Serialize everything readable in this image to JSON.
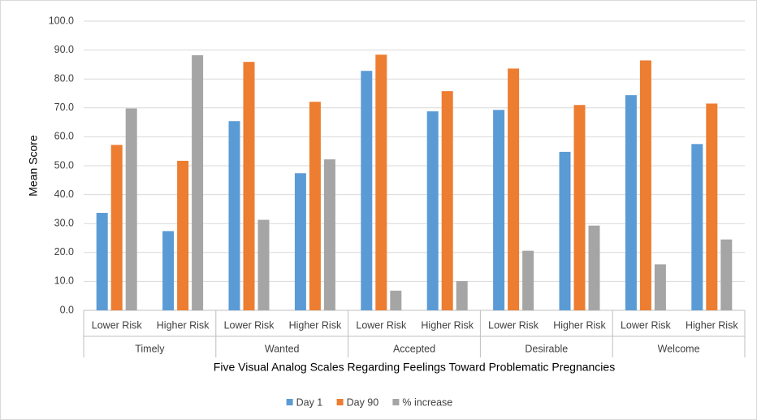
{
  "chart_data": {
    "type": "bar",
    "y_axis_label": "Mean Score",
    "x_axis_label": "Five Visual Analog Scales Regarding Feelings Toward Problematic Pregnancies",
    "categories": [
      "Lower Risk",
      "Higher Risk",
      "Lower Risk",
      "Higher Risk",
      "Lower Risk",
      "Higher Risk",
      "Lower Risk",
      "Higher Risk",
      "Lower Risk",
      "Higher Risk"
    ],
    "category_groups": [
      "Timely",
      "Wanted",
      "Accepted",
      "Desirable",
      "Welcome"
    ],
    "series": [
      {
        "name": "Day 1",
        "color": "#5b9bd5",
        "values": [
          33.7,
          27.4,
          65.4,
          47.4,
          82.8,
          68.8,
          69.3,
          54.8,
          74.4,
          57.5
        ]
      },
      {
        "name": "Day 90",
        "color": "#ed7d31",
        "values": [
          57.2,
          51.7,
          85.9,
          72.1,
          88.4,
          75.8,
          83.6,
          71.0,
          86.4,
          71.5
        ]
      },
      {
        "name": "% increase",
        "color": "#a5a5a5",
        "values": [
          69.8,
          88.2,
          31.3,
          52.2,
          6.8,
          10.1,
          20.6,
          29.3,
          15.9,
          24.5
        ]
      }
    ],
    "ylim": [
      0,
      100
    ],
    "yticks": [
      {
        "value": 0,
        "label": "0.0"
      },
      {
        "value": 10,
        "label": "10.0"
      },
      {
        "value": 20,
        "label": "20.0"
      },
      {
        "value": 30,
        "label": "30.0"
      },
      {
        "value": 40,
        "label": "40.0"
      },
      {
        "value": 50,
        "label": "50.0"
      },
      {
        "value": 60,
        "label": "60.0"
      },
      {
        "value": 70,
        "label": "70.0"
      },
      {
        "value": 80,
        "label": "80.0"
      },
      {
        "value": 90,
        "label": "90.0"
      },
      {
        "value": 100,
        "label": "100.0"
      }
    ],
    "grid": true,
    "legend": "bottom"
  }
}
